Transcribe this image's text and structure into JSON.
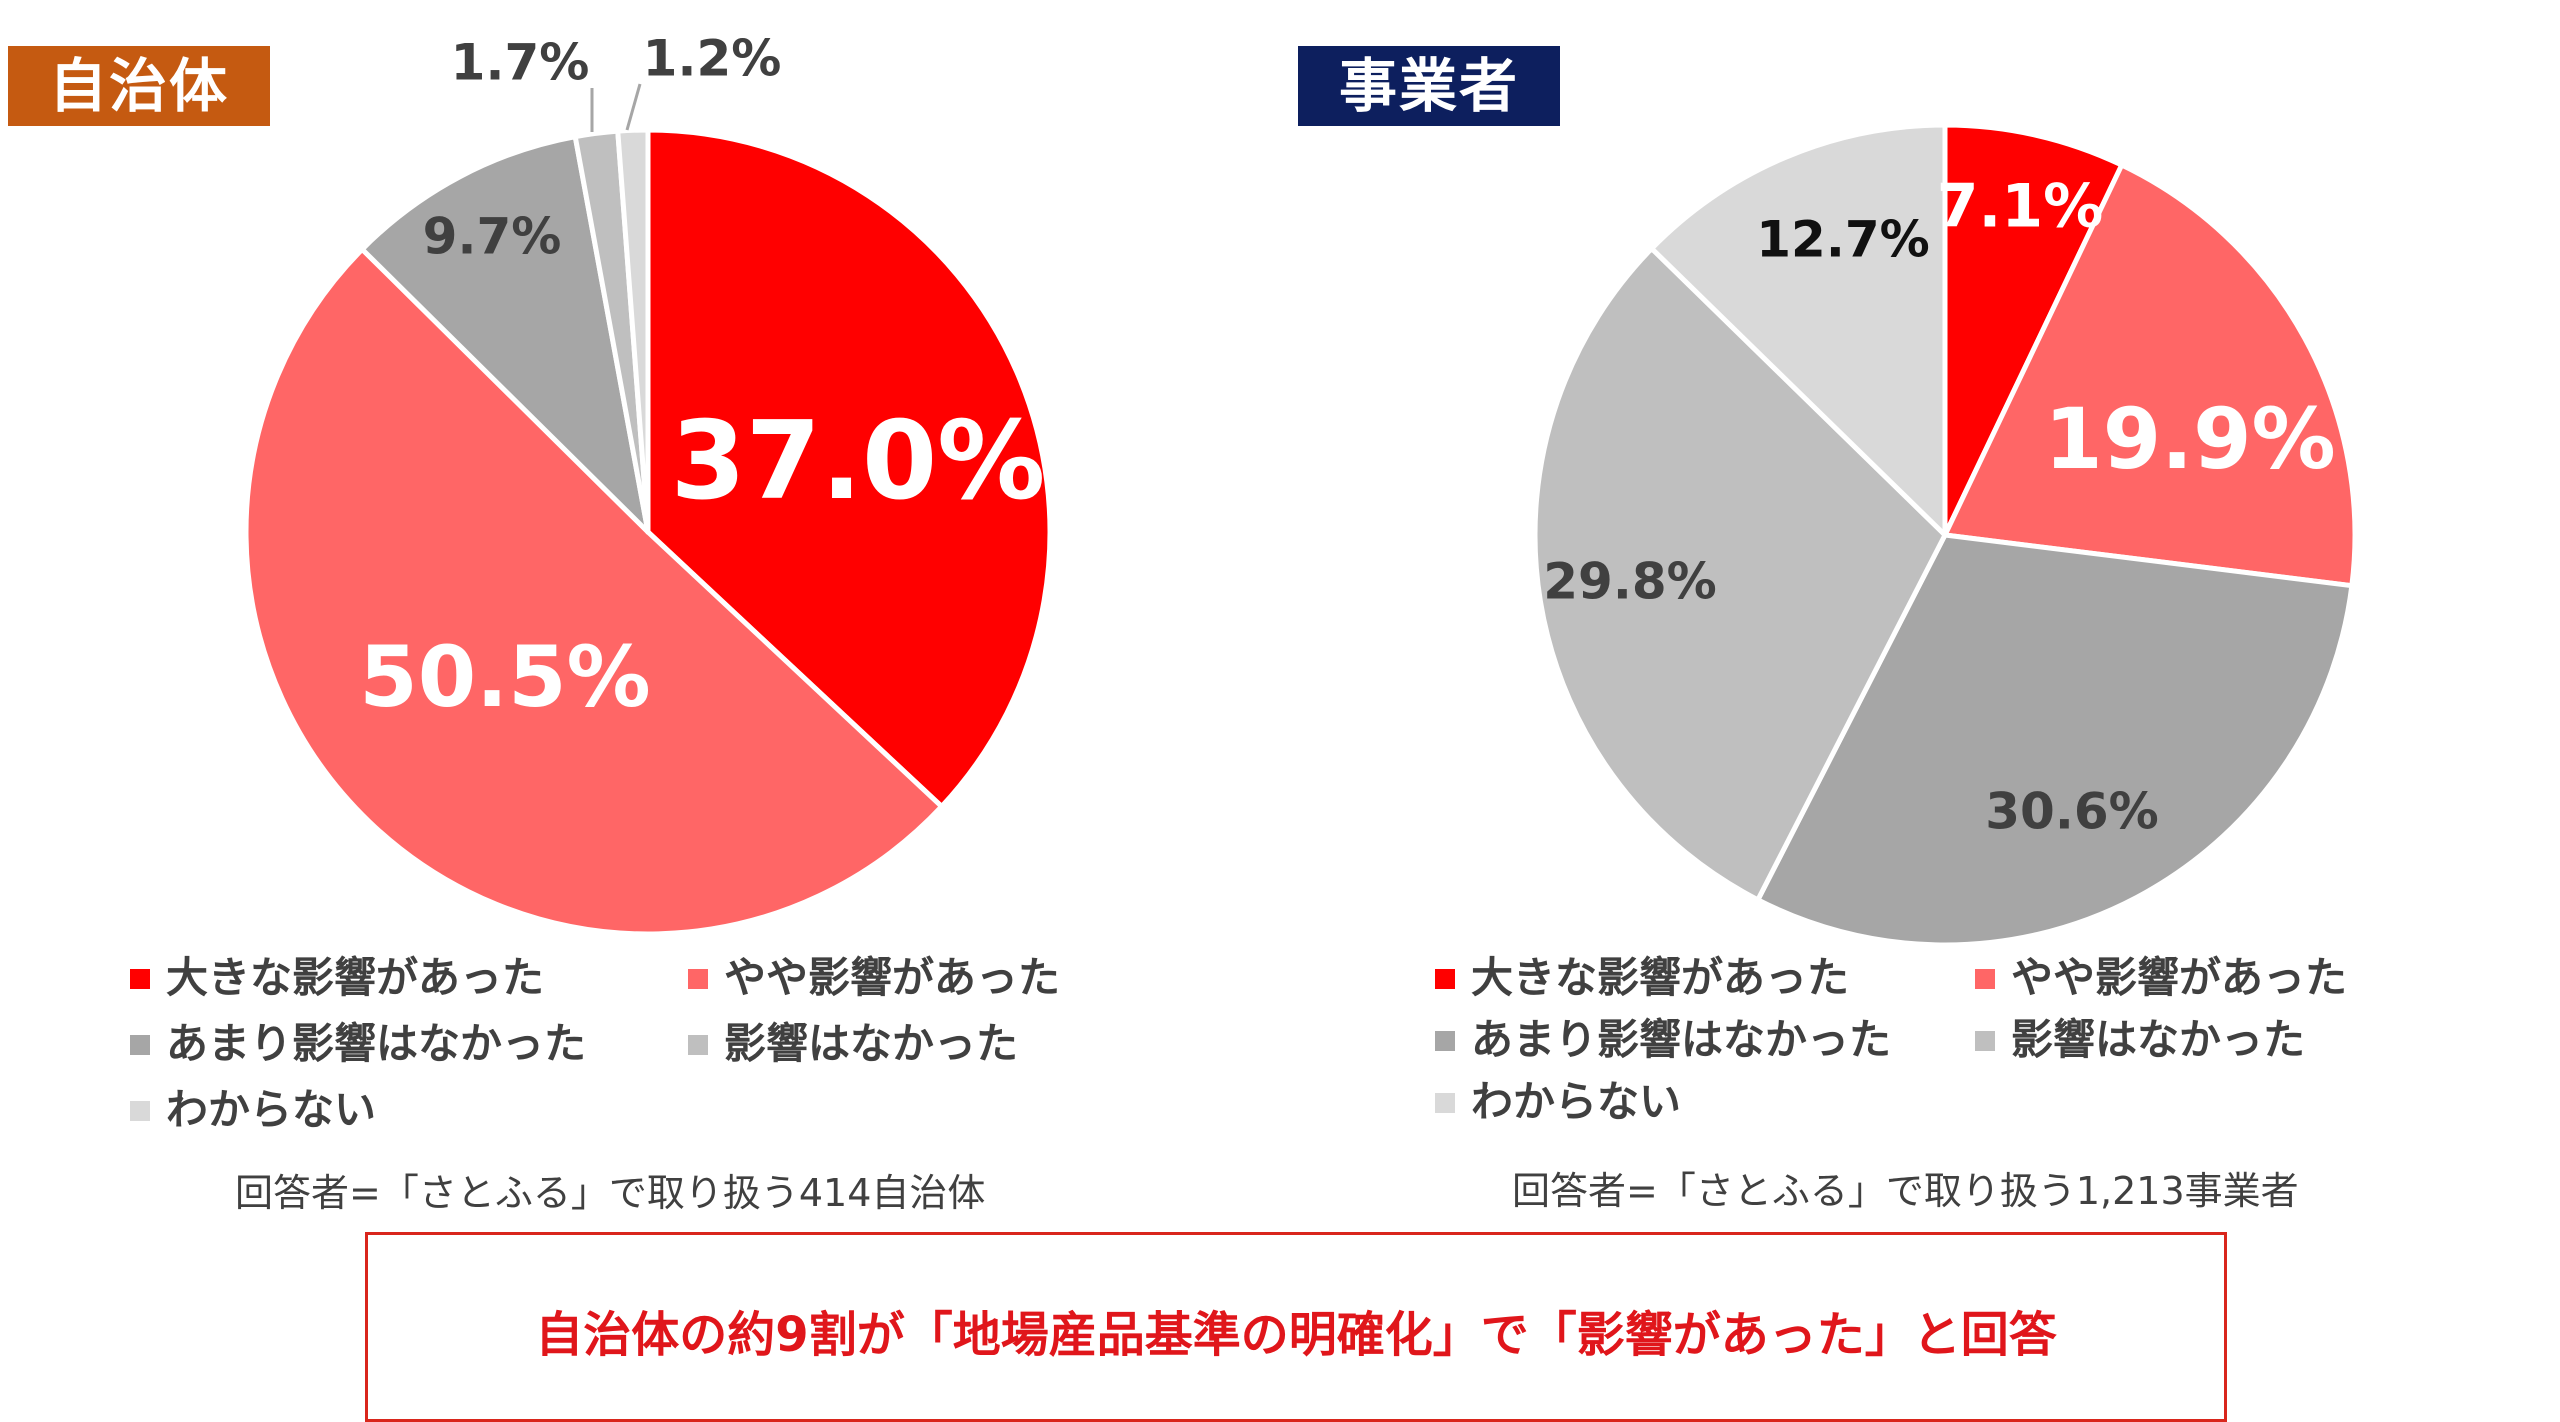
{
  "chart_data": [
    {
      "type": "pie",
      "title": "自治体",
      "categories": [
        "大きな影響があった",
        "やや影響があった",
        "あまり影響はなかった",
        "影響はなかった",
        "わからない"
      ],
      "values": [
        37.0,
        50.5,
        9.7,
        1.7,
        1.2
      ],
      "labels": [
        "37.0%",
        "50.5%",
        "9.7%",
        "1.7%",
        "1.2%"
      ],
      "colors": [
        "#ff0000",
        "#ff6666",
        "#a6a6a6",
        "#bfbfbf",
        "#d9d9d9"
      ],
      "label_colors": [
        "#ffffff",
        "#ffffff",
        "#404040",
        "#404040",
        "#404040"
      ],
      "legend_position": "bottom",
      "note": "回答者=「さとふる」で取り扱う414自治体"
    },
    {
      "type": "pie",
      "title": "事業者",
      "categories": [
        "大きな影響があった",
        "やや影響があった",
        "あまり影響はなかった",
        "影響はなかった",
        "わからない"
      ],
      "values": [
        7.1,
        19.9,
        30.6,
        29.8,
        12.7
      ],
      "labels": [
        "7.1%",
        "19.9%",
        "30.6%",
        "29.8%",
        "12.7%"
      ],
      "colors": [
        "#ff0000",
        "#ff6666",
        "#a6a6a6",
        "#bfbfbf",
        "#d9d9d9"
      ],
      "label_colors": [
        "#ffffff",
        "#ffffff",
        "#404040",
        "#404040",
        "#111111"
      ],
      "legend_position": "bottom",
      "note": "回答者=「さとふる」で取り扱う1,213事業者"
    }
  ],
  "title_tag_colors": [
    "#c55a11",
    "#0d1f5e"
  ],
  "callout": {
    "text": "自治体の約9割が「地場産品基準の明確化」で「影響があった」と回答",
    "color": "#e0161b",
    "border_color": "#d9261c"
  }
}
